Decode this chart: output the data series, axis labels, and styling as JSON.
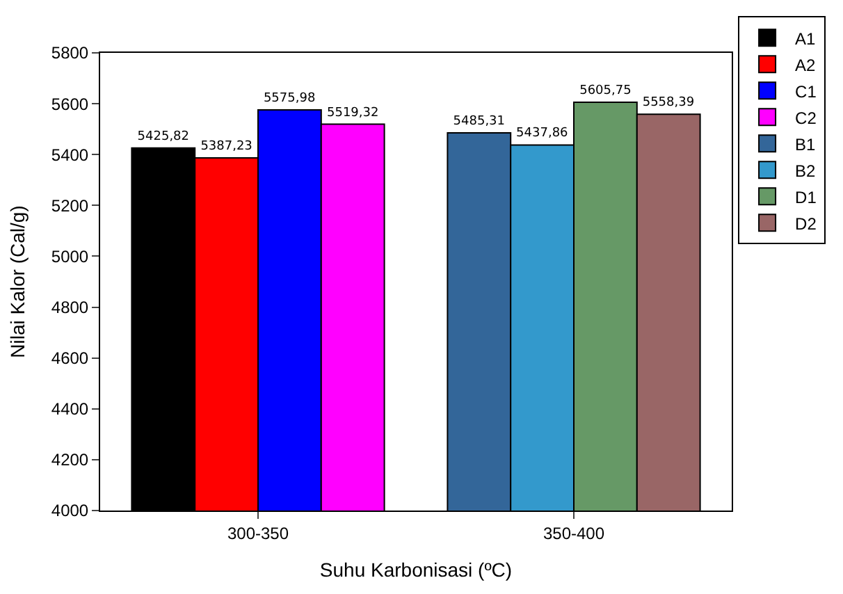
{
  "chart_data": {
    "type": "bar",
    "xlabel": "Suhu Karbonisasi (ºC)",
    "ylabel": "Nilai Kalor (Cal/g)",
    "categories": [
      "300-350",
      "350-400"
    ],
    "series": [
      {
        "name": "A1",
        "color": "#000000",
        "values": [
          5425.82,
          null
        ],
        "value_labels": [
          "5425,82",
          null
        ]
      },
      {
        "name": "A2",
        "color": "#ff0000",
        "values": [
          5387.23,
          null
        ],
        "value_labels": [
          "5387,23",
          null
        ]
      },
      {
        "name": "C1",
        "color": "#0000ff",
        "values": [
          5575.98,
          null
        ],
        "value_labels": [
          "5575,98",
          null
        ]
      },
      {
        "name": "C2",
        "color": "#ff00ff",
        "values": [
          5519.32,
          null
        ],
        "value_labels": [
          "5519,32",
          null
        ]
      },
      {
        "name": "B1",
        "color": "#336699",
        "values": [
          null,
          5485.31
        ],
        "value_labels": [
          null,
          "5485,31"
        ]
      },
      {
        "name": "B2",
        "color": "#3399cc",
        "values": [
          null,
          5437.86
        ],
        "value_labels": [
          null,
          "5437,86"
        ]
      },
      {
        "name": "D1",
        "color": "#669966",
        "values": [
          null,
          5605.75
        ],
        "value_labels": [
          null,
          "5605,75"
        ]
      },
      {
        "name": "D2",
        "color": "#996666",
        "values": [
          null,
          5558.39
        ],
        "value_labels": [
          null,
          "5558,39"
        ]
      }
    ],
    "ylim": [
      4000,
      5800
    ],
    "yticks": [
      4000,
      4200,
      4400,
      4600,
      4800,
      5000,
      5200,
      5400,
      5600,
      5800
    ],
    "legend": "top right"
  }
}
